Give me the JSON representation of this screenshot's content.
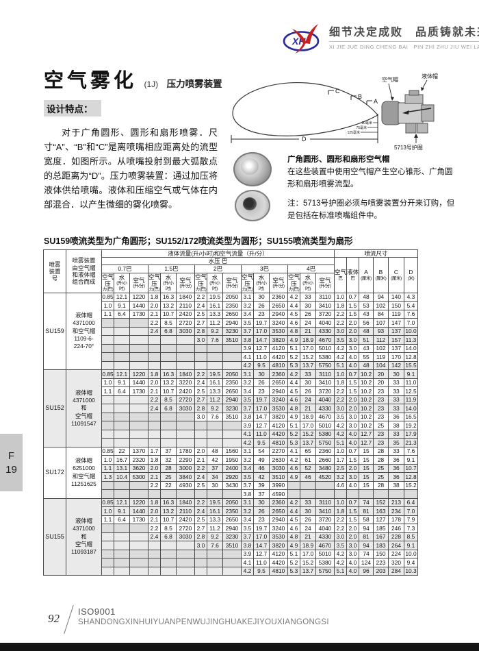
{
  "brand": {
    "logo_text": "XH",
    "slogan_cn": "细节决定成败　品质铸就未来",
    "slogan_pinyin": "XI JIE JUE DING CHENG BAI　PIN ZHI ZHU JIU WEI LAI"
  },
  "page": {
    "title": "空气雾化",
    "title_code": "(1J)",
    "title_tail": "压力喷雾装置",
    "design_label": "设计特点：",
    "intro": "对于广角圆形、圆形和扇形喷雾．尺寸“A”、“B”和“C”是离喷嘴相应距离处的流型宽度．如图所示。从喷嘴投射到最大弧散点的总距离为“D”。压力喷雾装置：通过加压将液体供给喷嘴。液体和压缩空气或气体在内部混合．以产生微细的雾化喷雾。"
  },
  "diagram": {
    "label_a": "A",
    "label_b": "B",
    "label_c": "C",
    "label_d": "D",
    "air_cap": "空气帽",
    "liquid_cap": "液体帽",
    "retainer": "5713号护圈",
    "dim_30": "30毫米",
    "dim_75": "75毫米",
    "dim_125": "125毫米",
    "caption_title": "广角圆形、圆形和扇形空气帽",
    "caption_body": "在这些装置中使用空气帽产生空心锥形、广角圆形和扇形喷雾流型。",
    "note": "注：5713号护圈必须与喷雾装置分开来订购，但是包括在标准喷嘴组件中。"
  },
  "table": {
    "title": "SU159喷流类型为广角圆形；SU152/172喷流类型为圆形；SU155喷流类型为扇形",
    "headers": {
      "col1": [
        "喷雾",
        "装置",
        "号"
      ],
      "col2": [
        "喷雾装置",
        "由空气帽",
        "和液体帽",
        "组合而成"
      ],
      "flow": "液体流量(升/小时)和空气流量（升/分）",
      "pressure": "水压 巴",
      "pressures": [
        "0.7巴",
        "1.5巴",
        "2巴",
        "3巴",
        "4巴"
      ],
      "subs": [
        [
          "空气压",
          "力(巴)"
        ],
        [
          "水",
          "(升/小时)"
        ],
        [
          "空气",
          "(升/分)"
        ]
      ],
      "spray_dim": "喷流尺寸",
      "right": [
        [
          "空气",
          "巴"
        ],
        [
          "液体",
          "巴"
        ],
        [
          "A",
          "(厘米)"
        ],
        [
          "B",
          "(厘米)"
        ],
        [
          "C",
          "(厘米)"
        ],
        [
          "D",
          "(米)"
        ]
      ]
    },
    "groups": [
      {
        "id": "SU159",
        "caps": [
          "液体帽",
          "4371000",
          "和空气帽",
          "1109-6-",
          "224-70°"
        ],
        "rows": [
          [
            "0.85",
            "12.1",
            "1220",
            "1.8",
            "16.3",
            "1840",
            "2.2",
            "19.5",
            "2050",
            "3.1",
            "30",
            "2360",
            "4.2",
            "33",
            "3110",
            "1.0",
            "0.7",
            "48",
            "94",
            "140",
            "4.3"
          ],
          [
            "1.0",
            "9.1",
            "1440",
            "2.0",
            "13.2",
            "2110",
            "2.4",
            "16.1",
            "2350",
            "3.2",
            "26",
            "2650",
            "4.4",
            "30",
            "3410",
            "1.8",
            "1.5",
            "53",
            "102",
            "150",
            "5.4"
          ],
          [
            "1.1",
            "6.4",
            "1730",
            "2.1",
            "10.7",
            "2420",
            "2.5",
            "13.3",
            "2650",
            "3.4",
            "23",
            "2940",
            "4.5",
            "26",
            "3720",
            "2.2",
            "1.5",
            "43",
            "84",
            "119",
            "7.6"
          ],
          [
            "",
            "",
            "",
            "2.2",
            "8.5",
            "2720",
            "2.7",
            "11.2",
            "2940",
            "3.5",
            "19.7",
            "3240",
            "4.6",
            "24",
            "4040",
            "2.2",
            "2.0",
            "56",
            "107",
            "147",
            "7.0"
          ],
          [
            "",
            "",
            "",
            "2.4",
            "6.8",
            "3030",
            "2.8",
            "9.2",
            "3230",
            "3.7",
            "17.0",
            "3530",
            "4.8",
            "21",
            "4330",
            "3.0",
            "2.0",
            "48",
            "93",
            "137",
            "10.0"
          ],
          [
            "",
            "",
            "",
            "",
            "",
            "",
            "3.0",
            "7.6",
            "3510",
            "3.8",
            "14.7",
            "3820",
            "4.9",
            "18.9",
            "4670",
            "3.5",
            "3.0",
            "51",
            "112",
            "157",
            "11.3"
          ],
          [
            "",
            "",
            "",
            "",
            "",
            "",
            "",
            "",
            "",
            "3.9",
            "12.7",
            "4120",
            "5.1",
            "17.0",
            "5010",
            "4.2",
            "3.0",
            "43",
            "102",
            "137",
            "14.0"
          ],
          [
            "",
            "",
            "",
            "",
            "",
            "",
            "",
            "",
            "",
            "4.1",
            "11.0",
            "4420",
            "5.2",
            "15.2",
            "5380",
            "4.2",
            "4.0",
            "55",
            "119",
            "170",
            "12.8"
          ],
          [
            "",
            "",
            "",
            "",
            "",
            "",
            "",
            "",
            "",
            "4.2",
            "9.5",
            "4810",
            "5.3",
            "13.7",
            "5750",
            "5.1",
            "4.0",
            "48",
            "104",
            "142",
            "15.5"
          ]
        ]
      },
      {
        "id": "SU152",
        "caps": [
          "液体帽",
          "4371000",
          "和",
          "空气帽",
          "11091547"
        ],
        "rows": [
          [
            "0.85",
            "12.1",
            "1220",
            "1.8",
            "16.3",
            "1840",
            "2.2",
            "19.5",
            "2050",
            "3.1",
            "30",
            "2360",
            "4.2",
            "33",
            "3110",
            "1.0",
            "0.7",
            "10.2",
            "20",
            "30",
            "9.1"
          ],
          [
            "1.0",
            "9.1",
            "1440",
            "2.0",
            "13.2",
            "3220",
            "2.4",
            "16.1",
            "2350",
            "3.2",
            "26",
            "2650",
            "4.4",
            "30",
            "3410",
            "1.8",
            "1.5",
            "10.2",
            "20",
            "33",
            "11.0"
          ],
          [
            "1.1",
            "6.4",
            "1730",
            "2.1",
            "10.7",
            "2420",
            "2.5",
            "13.3",
            "2650",
            "3.4",
            "23",
            "2940",
            "4.5",
            "26",
            "3720",
            "2.2",
            "1.5",
            "10.2",
            "23",
            "33",
            "12.5"
          ],
          [
            "",
            "",
            "",
            "2.2",
            "8.5",
            "2720",
            "2.7",
            "11.2",
            "2940",
            "3.5",
            "19.7",
            "3240",
            "4.6",
            "24",
            "4040",
            "2.2",
            "2.0",
            "10.2",
            "23",
            "33",
            "11.9"
          ],
          [
            "",
            "",
            "",
            "2.4",
            "6.8",
            "3030",
            "2.8",
            "9.2",
            "3230",
            "3.7",
            "17.0",
            "3530",
            "4.8",
            "21",
            "4330",
            "3.0",
            "2.0",
            "10.2",
            "23",
            "33",
            "14.0"
          ],
          [
            "",
            "",
            "",
            "",
            "",
            "",
            "3.0",
            "7.6",
            "3510",
            "3.8",
            "14.7",
            "3820",
            "4.9",
            "18.9",
            "4670",
            "3.5",
            "3.0",
            "10.2",
            "23",
            "36",
            "16.5"
          ],
          [
            "",
            "",
            "",
            "",
            "",
            "",
            "",
            "",
            "",
            "3.9",
            "12.7",
            "4120",
            "5.1",
            "17.0",
            "5010",
            "4.2",
            "3.0",
            "10.2",
            "25",
            "38",
            "19.2"
          ],
          [
            "",
            "",
            "",
            "",
            "",
            "",
            "",
            "",
            "",
            "4.1",
            "11.0",
            "4420",
            "5.2",
            "15.2",
            "5380",
            "4.2",
            "4.0",
            "12.7",
            "23",
            "33",
            "17.9"
          ],
          [
            "",
            "",
            "",
            "",
            "",
            "",
            "",
            "",
            "",
            "4.2",
            "9.5",
            "4810",
            "5.3",
            "13.7",
            "5750",
            "5.1",
            "4.0",
            "12.7",
            "23",
            "35",
            "21.3"
          ]
        ]
      },
      {
        "id": "SU172",
        "caps": [
          "液体帽",
          "6251000",
          "和空气帽",
          "11251625"
        ],
        "rows": [
          [
            "0.85",
            "22",
            "1370",
            "1.7",
            "37",
            "1780",
            "2.0",
            "48",
            "1560",
            "3.1",
            "54",
            "2270",
            "4.1",
            "65",
            "2360",
            "1.0",
            "0.7",
            "15",
            "28",
            "33",
            "7.6"
          ],
          [
            "1.0",
            "16.7",
            "2320",
            "1.8",
            "32",
            "2290",
            "2.1",
            "42",
            "1950",
            "3.2",
            "49",
            "2630",
            "4.2",
            "61",
            "2660",
            "1.7",
            "1.5",
            "15",
            "28",
            "36",
            "9.1"
          ],
          [
            "1.1",
            "13.1",
            "3620",
            "2.0",
            "28",
            "3000",
            "2.2",
            "37",
            "2400",
            "3.4",
            "46",
            "3030",
            "4.6",
            "52",
            "3480",
            "2.5",
            "2.0",
            "15",
            "25",
            "36",
            "10.7"
          ],
          [
            "1.3",
            "10.4",
            "5300",
            "2.1",
            "25",
            "3840",
            "2.4",
            "34",
            "2920",
            "3.5",
            "42",
            "3510",
            "4.9",
            "46",
            "4520",
            "3.2",
            "3.0",
            "15",
            "25",
            "36",
            "12.8"
          ],
          [
            "",
            "",
            "",
            "2.2",
            "22",
            "4930",
            "2.5",
            "30",
            "3430",
            "3.7",
            "39",
            "3990",
            "",
            "",
            "",
            "4.6",
            "4.0",
            "15",
            "28",
            "38",
            "15.2"
          ],
          [
            "",
            "",
            "",
            "",
            "",
            "",
            "",
            "",
            "",
            "3.8",
            "37",
            "4590",
            "",
            "",
            "",
            "",
            "",
            "",
            "",
            "",
            ""
          ]
        ]
      },
      {
        "id": "SU155",
        "caps": [
          "液体帽",
          "4371000",
          "和",
          "空气帽",
          "11093187"
        ],
        "rows": [
          [
            "0.85",
            "12.1",
            "1220",
            "1.8",
            "16.3",
            "1840",
            "2.2",
            "19.5",
            "2050",
            "3.1",
            "30",
            "2360",
            "4.2",
            "33",
            "3110",
            "1.0",
            "0.7",
            "74",
            "152",
            "213",
            "6.4"
          ],
          [
            "1.0",
            "9.1",
            "1440",
            "2.0",
            "13.2",
            "2110",
            "2.4",
            "16.1",
            "2350",
            "3.2",
            "26",
            "2650",
            "4.4",
            "30",
            "3410",
            "1.8",
            "1.5",
            "81",
            "163",
            "234",
            "7.0"
          ],
          [
            "1.1",
            "6.4",
            "1730",
            "2.1",
            "10.7",
            "2420",
            "2.5",
            "13.3",
            "2650",
            "3.4",
            "23",
            "2940",
            "4.5",
            "26",
            "3720",
            "2.2",
            "1.5",
            "58",
            "127",
            "178",
            "7.9"
          ],
          [
            "",
            "",
            "",
            "2.2",
            "8.5",
            "2720",
            "2.7",
            "11.2",
            "2940",
            "3.5",
            "19.7",
            "3240",
            "4.6",
            "24",
            "4040",
            "2.2",
            "2.0",
            "94",
            "185",
            "246",
            "7.3"
          ],
          [
            "",
            "",
            "",
            "2.4",
            "6.8",
            "3030",
            "2.8",
            "9.2",
            "3230",
            "3.7",
            "17.0",
            "3530",
            "4.8",
            "21",
            "4330",
            "3.0",
            "2.0",
            "81",
            "167",
            "228",
            "8.5"
          ],
          [
            "",
            "",
            "",
            "",
            "",
            "",
            "3.0",
            "7.6",
            "3510",
            "3.8",
            "14.7",
            "3820",
            "4.9",
            "18.9",
            "4670",
            "3.5",
            "3.0",
            "94",
            "183",
            "264",
            "9.1"
          ],
          [
            "",
            "",
            "",
            "",
            "",
            "",
            "",
            "",
            "",
            "3.9",
            "12.7",
            "4120",
            "5.1",
            "17.0",
            "5010",
            "4.2",
            "3.0",
            "74",
            "150",
            "224",
            "10.0"
          ],
          [
            "",
            "",
            "",
            "",
            "",
            "",
            "",
            "",
            "",
            "4.1",
            "11.0",
            "4420",
            "5.2",
            "15.2",
            "5380",
            "4.2",
            "4.0",
            "124",
            "223",
            "320",
            "9.4"
          ],
          [
            "",
            "",
            "",
            "",
            "",
            "",
            "",
            "",
            "",
            "4.2",
            "9.5",
            "4810",
            "5.3",
            "13.7",
            "5750",
            "5.1",
            "4.0",
            "96",
            "203",
            "284",
            "10.3"
          ]
        ]
      }
    ]
  },
  "side_tab": {
    "line1": "F",
    "line2": "19"
  },
  "footer": {
    "page_no": "92",
    "iso": "ISO9001",
    "company": "SHANDONGXINHUIYUANPENWUJINGHUAKEJIYOUXIANGONGSI"
  }
}
